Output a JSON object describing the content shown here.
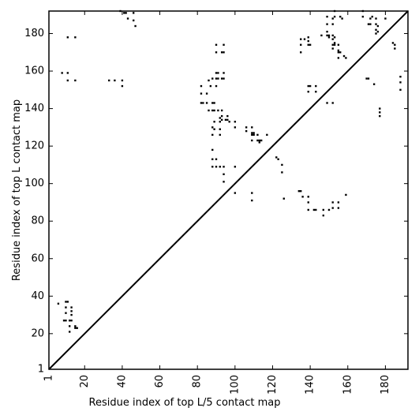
{
  "chart_data": {
    "type": "scatter",
    "xlabel": "Residue index of top L/5 contact map",
    "ylabel": "Residue index of top L contact map",
    "xlim": [
      1,
      192
    ],
    "ylim": [
      1,
      192
    ],
    "x_ticks": [
      1,
      20,
      40,
      60,
      80,
      100,
      120,
      140,
      160,
      180
    ],
    "x_tick_labels": [
      "1",
      "20",
      "40",
      "60",
      "80",
      "100",
      "120",
      "140",
      "160",
      "180"
    ],
    "y_ticks": [
      1,
      20,
      40,
      60,
      80,
      100,
      120,
      140,
      160,
      180
    ],
    "y_tick_labels": [
      "1",
      "20",
      "40",
      "60",
      "80",
      "100",
      "120",
      "140",
      "160",
      "180"
    ],
    "grid": false,
    "diagonal": true,
    "series": [
      {
        "values": [
          [
            8,
            159
          ],
          [
            11,
            159
          ],
          [
            11,
            155
          ],
          [
            15,
            155
          ],
          [
            33,
            155
          ],
          [
            36,
            155
          ],
          [
            40,
            155
          ],
          [
            40,
            152
          ],
          [
            11,
            178
          ],
          [
            15,
            178
          ],
          [
            39,
            192
          ],
          [
            41,
            191
          ],
          [
            42,
            191
          ],
          [
            43,
            188
          ],
          [
            46,
            191
          ],
          [
            46,
            187
          ],
          [
            47,
            184
          ],
          [
            82,
            152
          ],
          [
            82,
            148
          ],
          [
            82,
            143
          ],
          [
            83,
            143
          ],
          [
            85,
            148
          ],
          [
            85,
            143
          ],
          [
            86,
            155
          ],
          [
            86,
            139
          ],
          [
            87,
            152
          ],
          [
            88,
            156
          ],
          [
            88,
            143
          ],
          [
            88,
            139
          ],
          [
            88,
            130
          ],
          [
            88,
            126
          ],
          [
            88,
            118
          ],
          [
            88,
            113
          ],
          [
            88,
            109
          ],
          [
            89,
            143
          ],
          [
            89,
            139
          ],
          [
            89,
            129
          ],
          [
            89,
            133
          ],
          [
            90,
            174
          ],
          [
            90,
            170
          ],
          [
            90,
            159
          ],
          [
            90,
            156
          ],
          [
            90,
            152
          ],
          [
            90,
            113
          ],
          [
            90,
            109
          ],
          [
            91,
            159
          ],
          [
            91,
            156
          ],
          [
            91,
            139
          ],
          [
            92,
            135
          ],
          [
            92,
            133
          ],
          [
            92,
            129
          ],
          [
            92,
            126
          ],
          [
            92,
            109
          ],
          [
            93,
            170
          ],
          [
            93,
            156
          ],
          [
            93,
            139
          ],
          [
            93,
            136
          ],
          [
            93,
            134
          ],
          [
            94,
            174
          ],
          [
            94,
            170
          ],
          [
            94,
            159
          ],
          [
            94,
            156
          ],
          [
            94,
            109
          ],
          [
            94,
            105
          ],
          [
            94,
            101
          ],
          [
            95,
            134
          ],
          [
            96,
            136
          ],
          [
            96,
            134
          ],
          [
            97,
            133
          ],
          [
            100,
            133
          ],
          [
            100,
            130
          ],
          [
            100,
            109
          ],
          [
            100,
            95
          ],
          [
            106,
            130
          ],
          [
            106,
            128
          ],
          [
            109,
            130
          ],
          [
            109,
            127
          ],
          [
            109,
            126
          ],
          [
            109,
            123
          ],
          [
            109,
            95
          ],
          [
            109,
            91
          ],
          [
            110,
            127
          ],
          [
            110,
            126
          ],
          [
            112,
            126
          ],
          [
            112,
            123
          ],
          [
            113,
            123
          ],
          [
            113,
            122
          ],
          [
            114,
            123
          ],
          [
            117,
            126
          ],
          [
            122,
            114
          ],
          [
            123,
            113
          ],
          [
            125,
            110
          ],
          [
            125,
            106
          ],
          [
            126,
            92
          ],
          [
            134,
            96
          ],
          [
            135,
            96
          ],
          [
            135,
            177
          ],
          [
            135,
            174
          ],
          [
            135,
            170
          ],
          [
            136,
            93
          ],
          [
            137,
            177
          ],
          [
            139,
            178
          ],
          [
            139,
            176
          ],
          [
            139,
            174
          ],
          [
            139,
            152
          ],
          [
            139,
            149
          ],
          [
            139,
            93
          ],
          [
            139,
            90
          ],
          [
            139,
            86
          ],
          [
            140,
            174
          ],
          [
            140,
            152
          ],
          [
            142,
            86
          ],
          [
            143,
            152
          ],
          [
            143,
            149
          ],
          [
            143,
            86
          ],
          [
            146,
            179
          ],
          [
            147,
            86
          ],
          [
            147,
            83
          ],
          [
            149,
            189
          ],
          [
            149,
            185
          ],
          [
            149,
            181
          ],
          [
            149,
            179
          ],
          [
            149,
            143
          ],
          [
            150,
            179
          ],
          [
            150,
            178
          ],
          [
            150,
            86
          ],
          [
            152,
            143
          ],
          [
            152,
            188
          ],
          [
            152,
            185
          ],
          [
            152,
            179
          ],
          [
            152,
            177
          ],
          [
            152,
            174
          ],
          [
            152,
            172
          ],
          [
            152,
            90
          ],
          [
            152,
            87
          ],
          [
            153,
            192
          ],
          [
            153,
            189
          ],
          [
            153,
            178
          ],
          [
            153,
            175
          ],
          [
            153,
            174
          ],
          [
            155,
            174
          ],
          [
            155,
            171
          ],
          [
            155,
            170
          ],
          [
            155,
            167
          ],
          [
            155,
            90
          ],
          [
            155,
            87
          ],
          [
            156,
            189
          ],
          [
            156,
            170
          ],
          [
            157,
            188
          ],
          [
            158,
            168
          ],
          [
            159,
            167
          ],
          [
            159,
            94
          ],
          [
            168,
            192
          ],
          [
            168,
            189
          ],
          [
            170,
            156
          ],
          [
            171,
            156
          ],
          [
            171,
            185
          ],
          [
            172,
            188
          ],
          [
            172,
            185
          ],
          [
            173,
            189
          ],
          [
            174,
            153
          ],
          [
            175,
            188
          ],
          [
            175,
            185
          ],
          [
            175,
            182
          ],
          [
            175,
            180
          ],
          [
            176,
            184
          ],
          [
            176,
            181
          ],
          [
            177,
            140
          ],
          [
            177,
            138
          ],
          [
            177,
            136
          ],
          [
            180,
            188
          ],
          [
            184,
            175
          ],
          [
            185,
            174
          ],
          [
            185,
            172
          ],
          [
            188,
            157
          ],
          [
            188,
            154
          ],
          [
            188,
            150
          ]
        ]
      },
      {
        "values": [
          [
            6,
            36
          ],
          [
            10,
            37
          ],
          [
            11,
            37
          ],
          [
            10,
            34
          ],
          [
            10,
            31
          ],
          [
            10,
            27
          ],
          [
            9,
            27
          ],
          [
            13,
            34
          ],
          [
            13,
            32
          ],
          [
            13,
            30
          ],
          [
            12,
            27
          ],
          [
            13,
            27
          ],
          [
            12,
            24
          ],
          [
            12,
            21
          ],
          [
            15,
            24
          ],
          [
            16,
            23
          ],
          [
            15,
            23
          ]
        ]
      }
    ]
  }
}
